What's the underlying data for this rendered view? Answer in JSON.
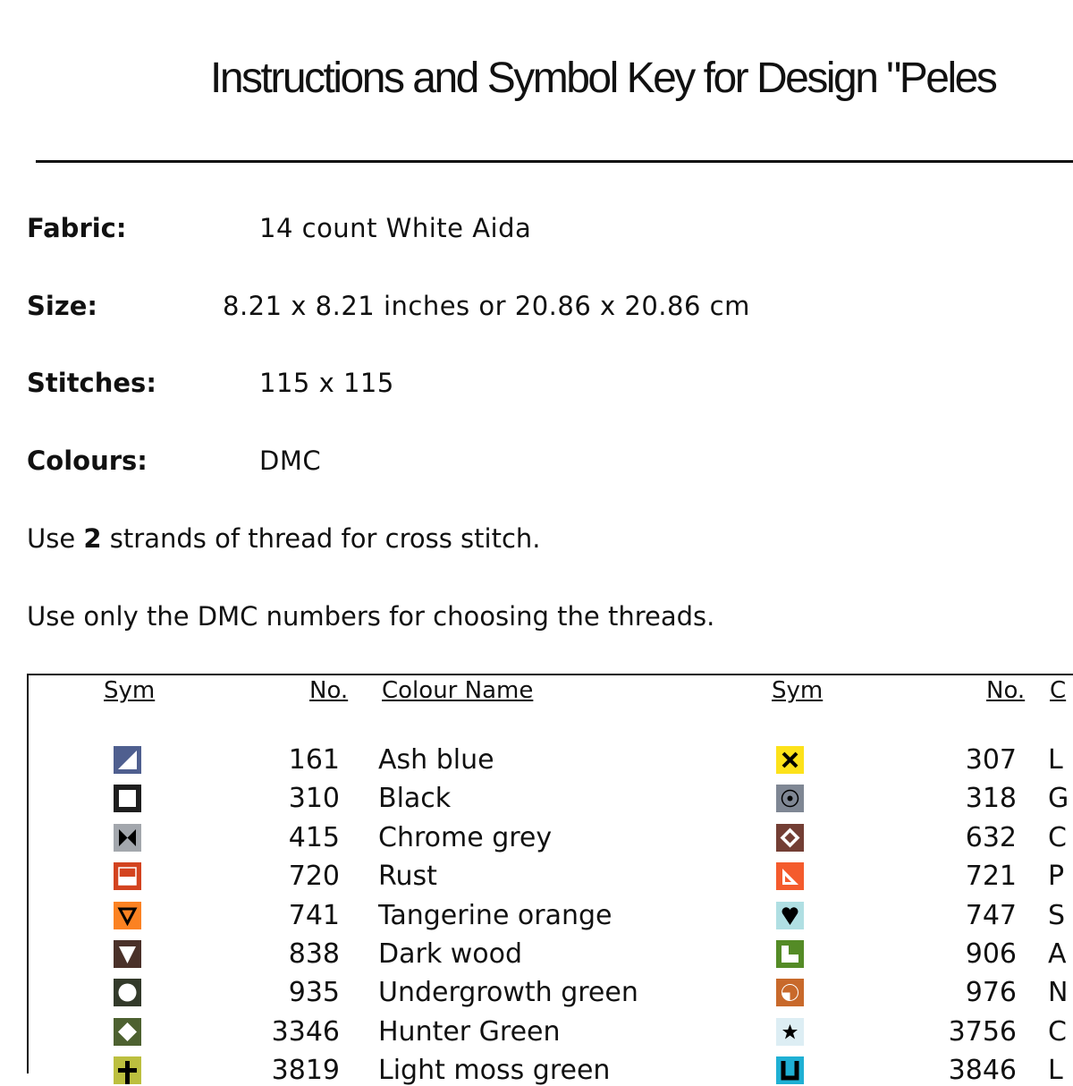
{
  "title": "Instructions and Symbol Key for Design \"Peles",
  "info": [
    {
      "label": "Fabric:",
      "value": "14 count White Aida"
    },
    {
      "label": "Size:",
      "value": "8.21 x 8.21 inches or 20.86 x 20.86 cm"
    },
    {
      "label": "Stitches:",
      "value": "115 x 115"
    },
    {
      "label": "Colours:",
      "value": "DMC"
    }
  ],
  "instructions": {
    "strands_pre": "Use ",
    "strands_num": "2",
    "strands_post": " strands of thread for cross stitch.",
    "dmc_note": "Use only the DMC numbers for choosing the threads."
  },
  "headers": {
    "sym": "Sym",
    "no": "No.",
    "name": "Colour Name",
    "sym2": "Sym",
    "no2": "No.",
    "name2": "C"
  },
  "left": [
    {
      "no": "161",
      "name": "Ash blue",
      "color": "#4f5f8f",
      "icon": "half-triangle"
    },
    {
      "no": "310",
      "name": "Black",
      "color": "#1e1e1e",
      "icon": "square"
    },
    {
      "no": "415",
      "name": "Chrome grey",
      "color": "#a3a7ad",
      "icon": "bowtie"
    },
    {
      "no": "720",
      "name": "Rust",
      "color": "#d3431f",
      "icon": "half-rect"
    },
    {
      "no": "741",
      "name": "Tangerine orange",
      "color": "#fb8222",
      "icon": "triangle-outline"
    },
    {
      "no": "838",
      "name": "Dark wood",
      "color": "#4a3129",
      "icon": "triangle-down"
    },
    {
      "no": "935",
      "name": "Undergrowth green",
      "color": "#333a2a",
      "icon": "circle"
    },
    {
      "no": "3346",
      "name": "Hunter Green",
      "color": "#4d6130",
      "icon": "diamond"
    },
    {
      "no": "3819",
      "name": "Light moss green",
      "color": "#bcbf3f",
      "icon": "plus"
    }
  ],
  "right": [
    {
      "no": "307",
      "name": "L",
      "color": "#fde21a",
      "icon": "x"
    },
    {
      "no": "318",
      "name": "G",
      "color": "#7f8794",
      "icon": "dot-circle"
    },
    {
      "no": "632",
      "name": "C",
      "color": "#733e34",
      "icon": "diamond-outline"
    },
    {
      "no": "721",
      "name": "P",
      "color": "#f45b2d",
      "icon": "set-square"
    },
    {
      "no": "747",
      "name": "S",
      "color": "#b0dfe3",
      "icon": "heart"
    },
    {
      "no": "906",
      "name": "A",
      "color": "#548b26",
      "icon": "l-shape"
    },
    {
      "no": "976",
      "name": "N",
      "color": "#c8692b",
      "icon": "quarter-circle"
    },
    {
      "no": "3756",
      "name": "C",
      "color": "#ddeef4",
      "icon": "star"
    },
    {
      "no": "3846",
      "name": "L",
      "color": "#1fb0d4",
      "icon": "u-shape"
    }
  ]
}
